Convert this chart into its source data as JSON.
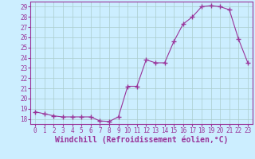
{
  "x": [
    0,
    1,
    2,
    3,
    4,
    5,
    6,
    7,
    8,
    9,
    10,
    11,
    12,
    13,
    14,
    15,
    16,
    17,
    18,
    19,
    20,
    21,
    22,
    23
  ],
  "y": [
    18.7,
    18.5,
    18.3,
    18.2,
    18.2,
    18.2,
    18.2,
    17.8,
    17.75,
    18.2,
    21.2,
    21.2,
    23.8,
    23.5,
    23.5,
    25.6,
    27.3,
    28.0,
    29.0,
    29.1,
    29.0,
    28.7,
    25.8,
    23.5
  ],
  "line_color": "#993399",
  "marker": "+",
  "marker_size": 4,
  "bg_color": "#cceeff",
  "grid_color": "#aacccc",
  "xlabel": "Windchill (Refroidissement éolien,°C)",
  "xlabel_color": "#993399",
  "xlim": [
    -0.5,
    23.5
  ],
  "ylim": [
    17.5,
    29.5
  ],
  "yticks": [
    18,
    19,
    20,
    21,
    22,
    23,
    24,
    25,
    26,
    27,
    28,
    29
  ],
  "xticks": [
    0,
    1,
    2,
    3,
    4,
    5,
    6,
    7,
    8,
    9,
    10,
    11,
    12,
    13,
    14,
    15,
    16,
    17,
    18,
    19,
    20,
    21,
    22,
    23
  ],
  "tick_fontsize": 5.5,
  "xlabel_fontsize": 7.0
}
